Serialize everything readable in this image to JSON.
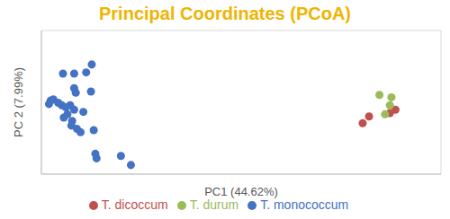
{
  "chart_data": {
    "type": "scatter",
    "title": "Principal Coordinates (PCoA)",
    "x_label": "PC1 (44.62%)",
    "y_label": "PC 2 (7.99%)",
    "xlim": [
      -0.4,
      0.6
    ],
    "xticks": [
      -0.4,
      -0.3,
      -0.2,
      -0.1,
      0,
      0.1,
      0.2,
      0.3,
      0.4,
      0.5,
      0.6
    ],
    "ylim": [
      -0.3,
      0.3
    ],
    "yticks": [
      -0.3,
      -0.2,
      -0.1,
      0,
      0.1,
      0.2,
      0.3
    ],
    "grid": true,
    "legend": "bottom",
    "tick_labels": false,
    "marker": "circle",
    "series": [
      {
        "name": "T. monococcum",
        "color": "#4472c4",
        "x": [
          -0.377,
          -0.381,
          -0.37,
          -0.346,
          -0.318,
          -0.288,
          -0.274,
          -0.318,
          -0.314,
          -0.276,
          -0.358,
          -0.349,
          -0.339,
          -0.335,
          -0.344,
          -0.323,
          -0.325,
          -0.328,
          -0.318,
          -0.295,
          -0.311,
          -0.302,
          -0.269,
          -0.265,
          -0.262,
          -0.201,
          -0.176
        ],
        "values": [
          0.007,
          -0.007,
          0.012,
          0.12,
          0.12,
          0.125,
          0.158,
          0.059,
          0.04,
          0.045,
          -0.002,
          -0.012,
          -0.021,
          -0.05,
          -0.064,
          -0.078,
          -0.097,
          -0.012,
          -0.031,
          -0.04,
          -0.111,
          -0.125,
          -0.116,
          -0.215,
          -0.234,
          -0.224,
          -0.262
        ]
      },
      {
        "name": "T. dicoccum",
        "color": "#c0504d",
        "x": [
          0.404,
          0.42,
          0.472,
          0.486
        ],
        "values": [
          -0.087,
          -0.059,
          -0.045,
          -0.031
        ]
      },
      {
        "name": "T. durum",
        "color": "#9bbb59",
        "x": [
          0.446,
          0.476,
          0.472,
          0.46
        ],
        "values": [
          0.031,
          0.021,
          -0.012,
          -0.05
        ]
      }
    ]
  }
}
